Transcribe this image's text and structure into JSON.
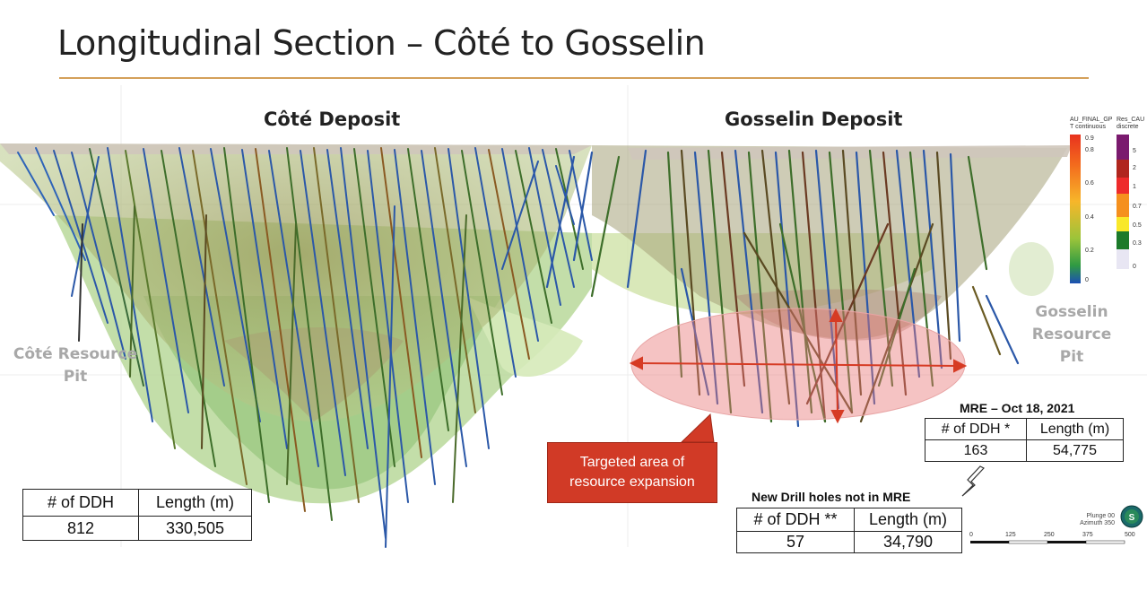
{
  "title": "Longitudinal Section – Côté to Gosselin",
  "deposits": {
    "cote": "Côté Deposit",
    "gosselin": "Gosselin Deposit"
  },
  "pits": {
    "cote": [
      "Côté Resource",
      "Pit"
    ],
    "gosselin": [
      "Gosselin",
      "Resource",
      "Pit"
    ]
  },
  "callout": [
    "Targeted area of",
    "resource expansion"
  ],
  "cote_table": {
    "headers": [
      "# of DDH",
      "Length (m)"
    ],
    "values": [
      "812",
      "330,505"
    ]
  },
  "mre_table": {
    "caption": "MRE – Oct 18, 2021",
    "headers": [
      "# of DDH *",
      "Length (m)"
    ],
    "values": [
      "163",
      "54,775"
    ]
  },
  "new_table": {
    "caption": "New Drill holes not in MRE",
    "headers": [
      "# of DDH **",
      "Length (m)"
    ],
    "values": [
      "57",
      "34,790"
    ]
  },
  "legend_continuous": {
    "title": [
      "AU_FINAL_GP",
      "T continuous"
    ],
    "ticks": [
      "0.9",
      "0.8",
      "0.6",
      "0.4",
      "0.2",
      "0"
    ]
  },
  "legend_discrete": {
    "title": [
      "Res_CAU",
      "discrete"
    ],
    "ticks": [
      "5",
      "2",
      "1",
      "0.7",
      "0.5",
      "0.3",
      "0"
    ]
  },
  "scale_bar": {
    "labels": [
      "0",
      "125",
      "250",
      "375",
      "500"
    ]
  },
  "orientation": [
    "Plunge 00",
    "Azimuth 350"
  ],
  "compass_letter": "S"
}
